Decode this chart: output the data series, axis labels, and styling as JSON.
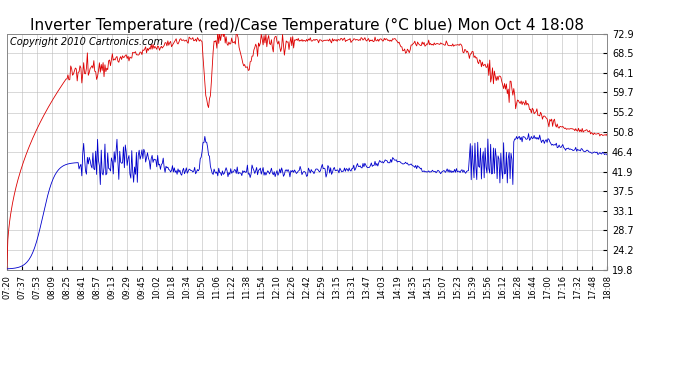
{
  "title": "Inverter Temperature (red)/Case Temperature (°C blue) Mon Oct 4 18:08",
  "copyright": "Copyright 2010 Cartronics.com",
  "y_ticks": [
    19.8,
    24.2,
    28.7,
    33.1,
    37.5,
    41.9,
    46.4,
    50.8,
    55.2,
    59.7,
    64.1,
    68.5,
    72.9
  ],
  "y_min": 19.8,
  "y_max": 72.9,
  "x_tick_labels": [
    "07:20",
    "07:37",
    "07:53",
    "08:09",
    "08:25",
    "08:41",
    "08:57",
    "09:13",
    "09:29",
    "09:45",
    "10:02",
    "10:18",
    "10:34",
    "10:50",
    "11:06",
    "11:22",
    "11:38",
    "11:54",
    "12:10",
    "12:26",
    "12:42",
    "12:59",
    "13:15",
    "13:31",
    "13:47",
    "14:03",
    "14:19",
    "14:35",
    "14:51",
    "15:07",
    "15:23",
    "15:39",
    "15:56",
    "16:12",
    "16:28",
    "16:44",
    "17:00",
    "17:16",
    "17:32",
    "17:48",
    "18:08"
  ],
  "background_color": "#ffffff",
  "plot_bg_color": "#ffffff",
  "grid_color": "#bbbbbb",
  "red_line_color": "#dd0000",
  "blue_line_color": "#0000cc",
  "title_fontsize": 11,
  "copyright_fontsize": 7
}
